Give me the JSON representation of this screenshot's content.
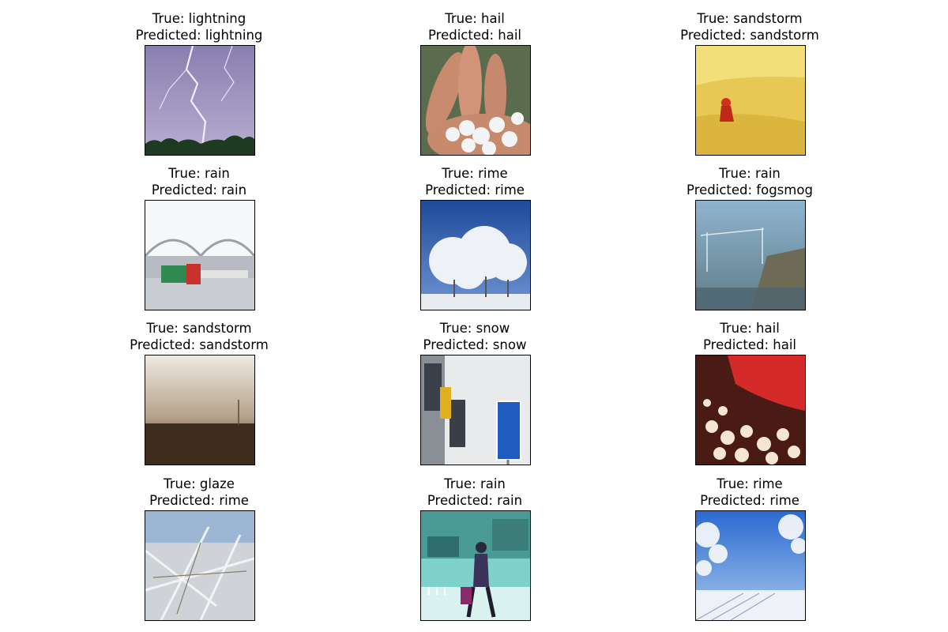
{
  "figure": {
    "true_prefix": "True: ",
    "pred_prefix": "Predicted: ",
    "panels": [
      {
        "true": "lightning",
        "pred": "lightning"
      },
      {
        "true": "hail",
        "pred": "hail"
      },
      {
        "true": "sandstorm",
        "pred": "sandstorm"
      },
      {
        "true": "rain",
        "pred": "rain"
      },
      {
        "true": "rime",
        "pred": "rime"
      },
      {
        "true": "rain",
        "pred": "fogsmog"
      },
      {
        "true": "sandstorm",
        "pred": "sandstorm"
      },
      {
        "true": "snow",
        "pred": "snow"
      },
      {
        "true": "hail",
        "pred": "hail"
      },
      {
        "true": "glaze",
        "pred": "rime"
      },
      {
        "true": "rain",
        "pred": "rain"
      },
      {
        "true": "rime",
        "pred": "rime"
      }
    ]
  },
  "colors": {
    "frame": "#000000",
    "background": "#ffffff"
  }
}
